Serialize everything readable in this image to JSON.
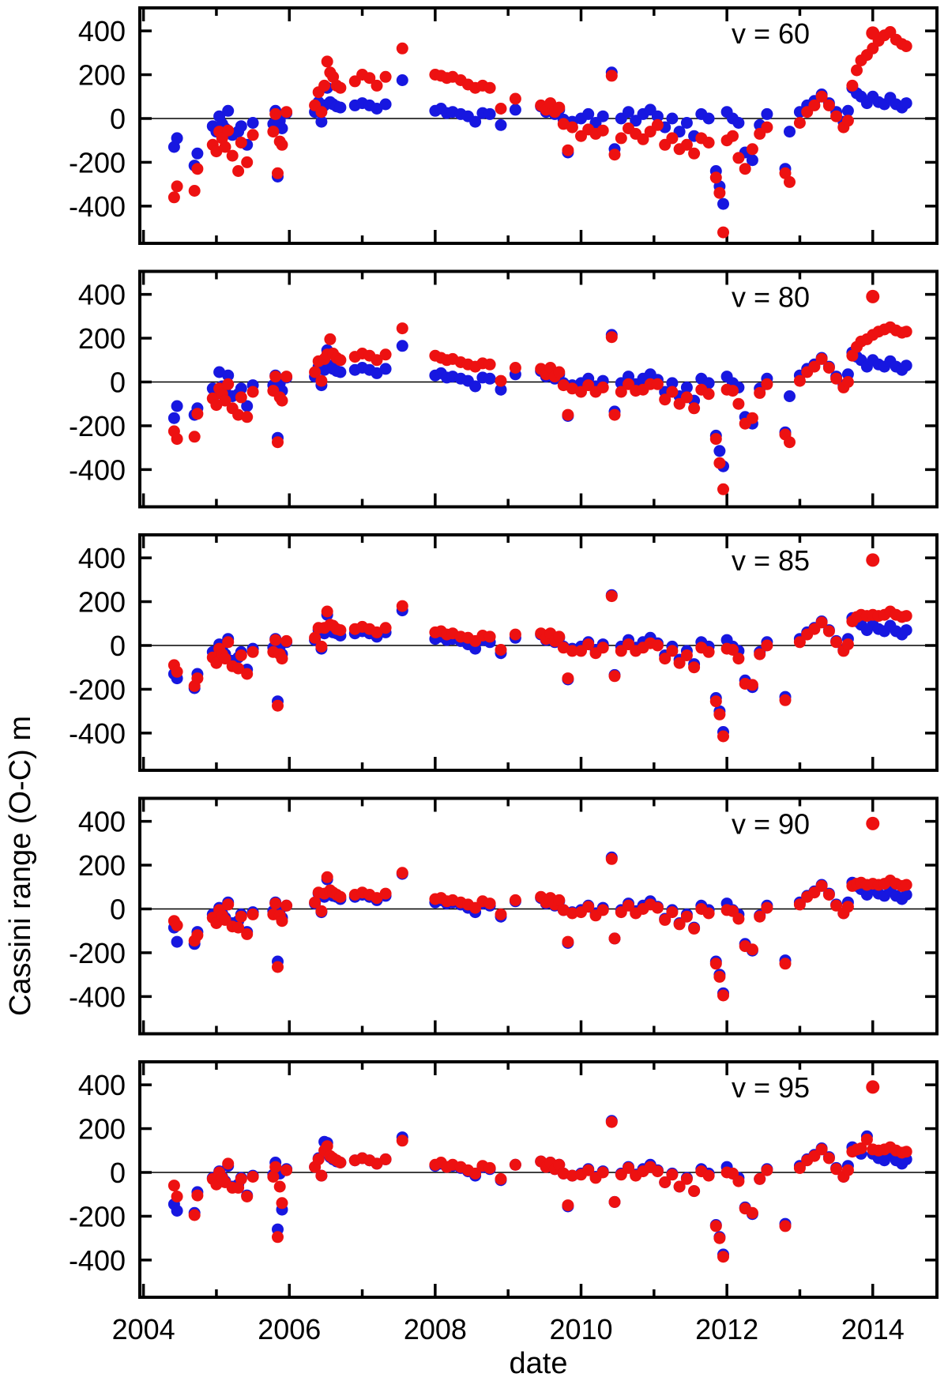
{
  "figure": {
    "background": "#ffffff"
  },
  "chart_data": {
    "type": "scatter",
    "title": "",
    "xlabel": "date",
    "ylabel": "Cassini range (O-C) m",
    "x_range": [
      2003.95,
      2014.88
    ],
    "y_range": [
      -570,
      505
    ],
    "x_tick_step": 1,
    "x_labeled_ticks": [
      2004,
      2006,
      2008,
      2010,
      2012,
      2014
    ],
    "y_ticks": [
      -400,
      -200,
      0,
      200,
      400
    ],
    "zero_line": true,
    "grid": false,
    "legend_position": "top-right-inside",
    "colors": {
      "red": "#ed1111",
      "blue": "#1717e0"
    },
    "marker_radius": 7.5,
    "label_anchor": {
      "x": 2012.6,
      "y": 390
    },
    "key_marker": {
      "x": 2014.0,
      "y": 390,
      "series": "red"
    },
    "x": [
      2004.42,
      2004.46,
      2004.7,
      2004.74,
      2004.95,
      2005.0,
      2005.04,
      2005.08,
      2005.12,
      2005.16,
      2005.22,
      2005.3,
      2005.34,
      2005.42,
      2005.5,
      2005.78,
      2005.81,
      2005.84,
      2005.87,
      2005.9,
      2005.96,
      2006.35,
      2006.4,
      2006.44,
      2006.48,
      2006.52,
      2006.56,
      2006.6,
      2006.65,
      2006.7,
      2006.9,
      2007.0,
      2007.1,
      2007.2,
      2007.32,
      2007.55,
      2008.0,
      2008.08,
      2008.16,
      2008.24,
      2008.35,
      2008.45,
      2008.55,
      2008.65,
      2008.75,
      2008.9,
      2009.1,
      2009.45,
      2009.52,
      2009.58,
      2009.64,
      2009.7,
      2009.76,
      2009.82,
      2009.88,
      2010.0,
      2010.1,
      2010.2,
      2010.3,
      2010.42,
      2010.46,
      2010.55,
      2010.65,
      2010.75,
      2010.85,
      2010.95,
      2011.05,
      2011.15,
      2011.25,
      2011.35,
      2011.45,
      2011.55,
      2011.65,
      2011.75,
      2011.85,
      2011.9,
      2011.95,
      2012.0,
      2012.08,
      2012.16,
      2012.25,
      2012.35,
      2012.45,
      2012.55,
      2012.8,
      2012.86,
      2013.0,
      2013.1,
      2013.2,
      2013.3,
      2013.4,
      2013.5,
      2013.6,
      2013.66,
      2013.72,
      2013.78,
      2013.84,
      2013.92,
      2014.0,
      2014.08,
      2014.16,
      2014.24,
      2014.32,
      2014.4,
      2014.46
    ],
    "panels": [
      {
        "label": "v = 60",
        "red": [
          -360,
          -310,
          -330,
          -230,
          -120,
          -150,
          -60,
          -90,
          -130,
          -55,
          -170,
          -240,
          -110,
          -200,
          -75,
          -60,
          20,
          -250,
          -105,
          -120,
          30,
          60,
          120,
          30,
          150,
          260,
          210,
          190,
          150,
          140,
          170,
          200,
          185,
          150,
          190,
          320,
          200,
          195,
          185,
          190,
          175,
          155,
          140,
          150,
          140,
          45,
          90,
          60,
          40,
          70,
          30,
          50,
          -25,
          -145,
          -40,
          -80,
          -50,
          -70,
          -55,
          195,
          -165,
          -90,
          -45,
          -70,
          -95,
          -60,
          -30,
          -120,
          -90,
          -140,
          -120,
          -160,
          -90,
          -110,
          -270,
          -340,
          -520,
          -100,
          -80,
          -180,
          -230,
          -140,
          -70,
          -40,
          -250,
          -290,
          -20,
          30,
          60,
          100,
          60,
          10,
          -40,
          -10,
          150,
          220,
          265,
          290,
          320,
          355,
          380,
          395,
          360,
          340,
          330
        ],
        "blue": [
          -130,
          -90,
          -215,
          -160,
          -35,
          -60,
          10,
          -25,
          -45,
          35,
          -75,
          -60,
          -35,
          -120,
          -20,
          -25,
          35,
          -265,
          -10,
          -45,
          25,
          30,
          75,
          -15,
          60,
          140,
          75,
          65,
          55,
          50,
          60,
          70,
          60,
          45,
          65,
          175,
          35,
          45,
          25,
          30,
          20,
          10,
          -15,
          25,
          20,
          -30,
          40,
          55,
          30,
          50,
          20,
          40,
          -5,
          -155,
          -15,
          0,
          20,
          -20,
          10,
          210,
          -140,
          0,
          30,
          -10,
          20,
          40,
          10,
          -40,
          0,
          -60,
          -20,
          -80,
          20,
          0,
          -240,
          -310,
          -390,
          30,
          0,
          -20,
          -155,
          -190,
          -30,
          20,
          -230,
          -60,
          30,
          60,
          80,
          110,
          70,
          30,
          -15,
          35,
          140,
          115,
          100,
          70,
          100,
          75,
          65,
          95,
          65,
          50,
          70
        ]
      },
      {
        "label": "v = 80",
        "red": [
          -225,
          -260,
          -250,
          -145,
          -75,
          -105,
          -30,
          -55,
          -85,
          -10,
          -120,
          -150,
          -70,
          -160,
          -45,
          -40,
          25,
          -275,
          -70,
          -85,
          25,
          45,
          95,
          5,
          105,
          125,
          195,
          130,
          110,
          100,
          115,
          130,
          120,
          100,
          125,
          245,
          120,
          110,
          100,
          105,
          90,
          80,
          70,
          85,
          80,
          5,
          65,
          60,
          35,
          65,
          25,
          45,
          -15,
          -150,
          -30,
          -45,
          -15,
          -45,
          -25,
          205,
          -150,
          -45,
          -10,
          -40,
          -35,
          -10,
          -10,
          -80,
          -45,
          -100,
          -70,
          -120,
          -35,
          -55,
          -260,
          -370,
          -490,
          -35,
          -40,
          -100,
          -190,
          -165,
          -50,
          -10,
          -240,
          -275,
          5,
          45,
          70,
          105,
          65,
          15,
          -25,
          0,
          120,
          160,
          185,
          195,
          215,
          230,
          240,
          250,
          235,
          225,
          230
        ],
        "blue": [
          -165,
          -110,
          -150,
          -120,
          -30,
          -55,
          45,
          -20,
          -40,
          30,
          -65,
          -55,
          -30,
          -110,
          -15,
          -15,
          30,
          -255,
          -5,
          -40,
          20,
          25,
          70,
          -15,
          55,
          145,
          75,
          60,
          50,
          45,
          55,
          65,
          55,
          40,
          60,
          165,
          30,
          40,
          20,
          25,
          15,
          5,
          -20,
          20,
          15,
          -35,
          35,
          50,
          25,
          45,
          15,
          35,
          -5,
          -155,
          -15,
          -5,
          15,
          -20,
          5,
          215,
          -135,
          -5,
          25,
          -10,
          15,
          35,
          10,
          -45,
          -5,
          -65,
          -25,
          -85,
          15,
          -5,
          -245,
          -315,
          -385,
          25,
          -5,
          -25,
          -160,
          -190,
          -30,
          15,
          -230,
          -65,
          30,
          60,
          80,
          110,
          70,
          25,
          -15,
          35,
          135,
          115,
          100,
          70,
          100,
          80,
          70,
          95,
          70,
          55,
          75
        ]
      },
      {
        "label": "v = 85",
        "red": [
          -90,
          -120,
          -185,
          -150,
          -55,
          -80,
          -15,
          -40,
          -60,
          15,
          -95,
          -105,
          -45,
          -130,
          -30,
          -30,
          25,
          -275,
          -40,
          -60,
          20,
          35,
          80,
          -5,
          80,
          155,
          95,
          90,
          75,
          70,
          75,
          85,
          75,
          60,
          80,
          180,
          60,
          65,
          50,
          55,
          40,
          35,
          20,
          45,
          40,
          -20,
          50,
          55,
          30,
          55,
          20,
          40,
          -10,
          -150,
          -25,
          -25,
          5,
          -35,
          -10,
          225,
          -140,
          -25,
          5,
          -25,
          -10,
          10,
          0,
          -60,
          -25,
          -80,
          -45,
          -100,
          -10,
          -30,
          -255,
          -315,
          -415,
          -15,
          -20,
          -60,
          -175,
          -180,
          -40,
          0,
          -250,
          null,
          15,
          50,
          75,
          105,
          65,
          15,
          -25,
          5,
          110,
          130,
          140,
          135,
          140,
          135,
          140,
          155,
          140,
          130,
          135
        ],
        "blue": [
          -130,
          -150,
          -195,
          -130,
          -30,
          -55,
          5,
          -20,
          -40,
          30,
          -70,
          -55,
          -30,
          -110,
          -15,
          -10,
          30,
          -255,
          -5,
          -40,
          15,
          25,
          70,
          -15,
          55,
          140,
          75,
          60,
          55,
          45,
          55,
          65,
          55,
          40,
          60,
          160,
          30,
          40,
          25,
          30,
          20,
          5,
          -15,
          25,
          15,
          -35,
          35,
          50,
          25,
          45,
          15,
          35,
          -5,
          -155,
          -15,
          -5,
          15,
          -20,
          5,
          230,
          -135,
          -5,
          25,
          -10,
          15,
          35,
          10,
          -45,
          -5,
          -65,
          -25,
          -85,
          15,
          -5,
          -240,
          -300,
          -395,
          25,
          -5,
          -25,
          -160,
          -190,
          -30,
          15,
          -235,
          null,
          30,
          60,
          80,
          110,
          70,
          20,
          -20,
          30,
          125,
          110,
          95,
          70,
          95,
          75,
          65,
          90,
          65,
          50,
          70
        ]
      },
      {
        "label": "v = 90",
        "red": [
          -55,
          -75,
          -145,
          -120,
          -40,
          -65,
          -5,
          -30,
          -50,
          20,
          -80,
          -85,
          -35,
          -115,
          -25,
          -25,
          25,
          -265,
          -30,
          -55,
          15,
          30,
          75,
          -10,
          70,
          145,
          85,
          75,
          65,
          55,
          65,
          75,
          65,
          50,
          70,
          165,
          45,
          50,
          35,
          40,
          30,
          20,
          5,
          35,
          25,
          -25,
          40,
          55,
          30,
          50,
          20,
          40,
          -5,
          -150,
          -20,
          -15,
          10,
          -30,
          -5,
          228,
          -135,
          -15,
          15,
          -20,
          0,
          20,
          5,
          -50,
          -15,
          -70,
          -35,
          -90,
          0,
          -20,
          -250,
          -310,
          -395,
          -5,
          -10,
          -45,
          -170,
          -185,
          -35,
          5,
          -250,
          null,
          20,
          55,
          75,
          105,
          65,
          15,
          -20,
          10,
          105,
          115,
          120,
          110,
          115,
          110,
          115,
          130,
          115,
          105,
          110
        ],
        "blue": [
          -85,
          -150,
          -160,
          -105,
          -25,
          -50,
          5,
          -20,
          -40,
          30,
          -65,
          -55,
          -25,
          -105,
          -15,
          -10,
          30,
          -240,
          -5,
          -40,
          15,
          25,
          70,
          -15,
          55,
          135,
          75,
          60,
          55,
          45,
          55,
          65,
          55,
          40,
          60,
          160,
          30,
          40,
          25,
          30,
          20,
          5,
          -15,
          25,
          15,
          -35,
          35,
          50,
          25,
          45,
          15,
          35,
          -5,
          -155,
          -15,
          -5,
          15,
          -20,
          5,
          235,
          -135,
          -5,
          25,
          -10,
          15,
          35,
          10,
          -45,
          -5,
          -65,
          -25,
          -85,
          15,
          -5,
          -240,
          -300,
          -385,
          25,
          -5,
          -25,
          -160,
          -190,
          -30,
          15,
          -235,
          null,
          30,
          60,
          80,
          110,
          70,
          20,
          -20,
          30,
          120,
          105,
          90,
          65,
          90,
          70,
          60,
          85,
          60,
          45,
          65
        ]
      },
      {
        "label": "v = 95",
        "red": [
          -60,
          -110,
          -195,
          -105,
          -30,
          -55,
          0,
          -25,
          -45,
          40,
          -70,
          -70,
          -30,
          -110,
          -20,
          -20,
          25,
          -295,
          -65,
          -140,
          10,
          25,
          60,
          -15,
          100,
          120,
          75,
          65,
          55,
          45,
          55,
          65,
          55,
          40,
          60,
          145,
          35,
          45,
          25,
          35,
          25,
          10,
          -5,
          30,
          20,
          -30,
          35,
          50,
          25,
          45,
          15,
          35,
          -5,
          -150,
          -15,
          -10,
          10,
          -25,
          0,
          230,
          -135,
          -10,
          20,
          -15,
          5,
          25,
          5,
          -45,
          -10,
          -65,
          -30,
          -85,
          5,
          -15,
          -245,
          -300,
          -385,
          0,
          -5,
          -40,
          -165,
          -185,
          -30,
          10,
          -245,
          null,
          20,
          55,
          75,
          105,
          65,
          15,
          -20,
          10,
          95,
          105,
          110,
          150,
          105,
          100,
          105,
          115,
          100,
          90,
          95
        ],
        "blue": [
          -145,
          -175,
          -185,
          -90,
          -25,
          -45,
          5,
          -20,
          -40,
          30,
          -65,
          -55,
          -25,
          -105,
          -15,
          -10,
          45,
          -260,
          -5,
          -170,
          15,
          25,
          65,
          -15,
          140,
          135,
          70,
          60,
          50,
          45,
          55,
          65,
          55,
          40,
          60,
          160,
          30,
          40,
          25,
          30,
          20,
          5,
          -15,
          25,
          15,
          -35,
          35,
          50,
          25,
          45,
          15,
          35,
          -5,
          -155,
          -15,
          -5,
          15,
          -20,
          5,
          235,
          -135,
          -5,
          25,
          -10,
          15,
          35,
          10,
          -45,
          -5,
          -65,
          -25,
          -85,
          15,
          -5,
          -240,
          -295,
          -375,
          25,
          -5,
          -25,
          -160,
          -190,
          -30,
          15,
          -235,
          null,
          30,
          60,
          80,
          110,
          70,
          20,
          -20,
          30,
          115,
          100,
          85,
          165,
          85,
          65,
          55,
          80,
          55,
          40,
          60
        ]
      }
    ]
  }
}
